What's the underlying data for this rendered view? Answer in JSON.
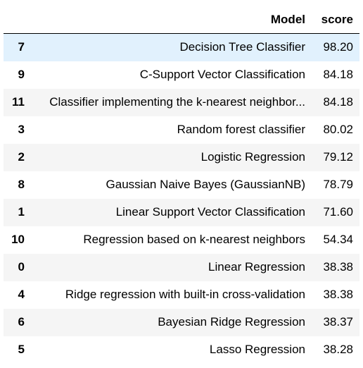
{
  "table": {
    "columns": [
      "Model",
      "score"
    ],
    "index_header": "",
    "rows": [
      {
        "index": "7",
        "model": "Decision Tree Classifier",
        "score": "98.20"
      },
      {
        "index": "9",
        "model": "C-Support Vector Classification",
        "score": "84.18"
      },
      {
        "index": "11",
        "model": "Classifier implementing the k-nearest neighbor...",
        "score": "84.18"
      },
      {
        "index": "3",
        "model": "Random forest classifier",
        "score": "80.02"
      },
      {
        "index": "2",
        "model": "Logistic Regression",
        "score": "79.12"
      },
      {
        "index": "8",
        "model": "Gaussian Naive Bayes (GaussianNB)",
        "score": "78.79"
      },
      {
        "index": "1",
        "model": "Linear Support Vector Classification",
        "score": "71.60"
      },
      {
        "index": "10",
        "model": "Regression based on k-nearest neighbors",
        "score": "54.34"
      },
      {
        "index": "0",
        "model": "Linear Regression",
        "score": "38.38"
      },
      {
        "index": "4",
        "model": "Ridge regression with built-in cross-validation",
        "score": "38.38"
      },
      {
        "index": "6",
        "model": "Bayesian Ridge Regression",
        "score": "38.37"
      },
      {
        "index": "5",
        "model": "Lasso Regression",
        "score": "38.28"
      }
    ],
    "highlighted_row": 0
  },
  "colors": {
    "hover_row": "#e1f1fd",
    "striped_row": "#f5f5f5",
    "header_rule": "#000000"
  }
}
